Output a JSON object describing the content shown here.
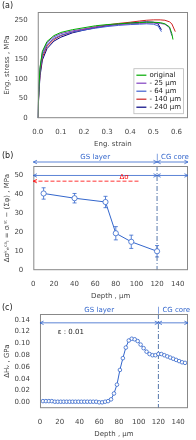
{
  "chart_data": [
    {
      "type": "line",
      "title": "(a)",
      "xlabel": "Eng. strain",
      "ylabel": "Eng. stress , MPa",
      "xlim": [
        0,
        0.65
      ],
      "ylim": [
        0,
        270
      ],
      "xticks": [
        {
          "value": 0.0,
          "label": "0.0"
        },
        0.1,
        0.2,
        0.3,
        0.4,
        0.5,
        0.6
      ],
      "yticks": [
        0,
        50,
        100,
        150,
        200,
        250
      ],
      "grid": false,
      "legend": "lower right",
      "series": [
        {
          "name": "original",
          "color": "#00aa00",
          "x": [
            0.0,
            0.005,
            0.01,
            0.02,
            0.04,
            0.07,
            0.1,
            0.15,
            0.2,
            0.25,
            0.3,
            0.35,
            0.4,
            0.44,
            0.47,
            0.5,
            0.53,
            0.55,
            0.57,
            0.58,
            0.585
          ],
          "values": [
            0,
            80,
            130,
            170,
            195,
            210,
            218,
            225,
            230,
            235,
            238,
            240,
            242,
            243,
            244,
            244,
            243,
            240,
            232,
            215,
            200
          ]
        },
        {
          "name": "- 25 μm",
          "color": "#8040c0",
          "x": [
            0.0,
            0.005,
            0.01,
            0.02,
            0.04,
            0.07,
            0.1,
            0.15,
            0.2,
            0.25,
            0.3,
            0.35,
            0.4,
            0.44,
            0.47,
            0.5,
            0.53,
            0.55,
            0.57,
            0.58
          ],
          "values": [
            0,
            78,
            128,
            167,
            192,
            207,
            215,
            222,
            227,
            232,
            236,
            238,
            240,
            241,
            242,
            242,
            241,
            239,
            230,
            210
          ]
        },
        {
          "name": "- 64 μm",
          "color": "#4060d0",
          "x": [
            0.0,
            0.005,
            0.01,
            0.02,
            0.04,
            0.07,
            0.1,
            0.15,
            0.2,
            0.25,
            0.3,
            0.35,
            0.4,
            0.44,
            0.47,
            0.5,
            0.52,
            0.535
          ],
          "values": [
            0,
            75,
            122,
            161,
            187,
            203,
            211,
            219,
            224,
            229,
            233,
            236,
            238,
            239,
            240,
            239,
            235,
            220
          ]
        },
        {
          "name": "- 140 μm",
          "color": "#cc2222",
          "x": [
            0.0,
            0.005,
            0.01,
            0.02,
            0.04,
            0.07,
            0.1,
            0.15,
            0.2,
            0.25,
            0.3,
            0.35,
            0.4,
            0.44,
            0.47,
            0.5,
            0.53,
            0.55,
            0.57,
            0.58,
            0.595
          ],
          "values": [
            0,
            70,
            115,
            155,
            183,
            200,
            210,
            219,
            226,
            232,
            237,
            241,
            244,
            247,
            249,
            250,
            250,
            249,
            245,
            240,
            220
          ]
        },
        {
          "name": "- 240 μm",
          "color": "#000080",
          "x": [
            0.0,
            0.005,
            0.01,
            0.02,
            0.04,
            0.07,
            0.1,
            0.15,
            0.2,
            0.25,
            0.3,
            0.35,
            0.4,
            0.44,
            0.47,
            0.5,
            0.52,
            0.535
          ],
          "values": [
            0,
            65,
            108,
            148,
            177,
            196,
            206,
            217,
            224,
            230,
            235,
            239,
            242,
            244,
            245,
            244,
            240,
            225
          ]
        }
      ]
    },
    {
      "type": "line",
      "title": "(b)",
      "xlabel": "Depth , μm",
      "ylabel": "Δσᵏₑᶜᵃₗ = σᵢⁿᵗ − (Σφ) , MPa",
      "xlim": [
        0,
        150
      ],
      "ylim": [
        0,
        55
      ],
      "xticks": [
        0,
        20,
        40,
        60,
        80,
        100,
        120,
        140
      ],
      "yticks": [
        0,
        10,
        20,
        30,
        40,
        50
      ],
      "grid": false,
      "series": [
        {
          "color": "#3366cc",
          "marker": "o",
          "line_style": "solid",
          "x": [
            10,
            40,
            70,
            80,
            95,
            120
          ],
          "values": [
            40.5,
            38.0,
            36.0,
            19.5,
            15.0,
            10.0
          ],
          "errors": [
            3.0,
            2.5,
            3.0,
            3.5,
            3.5,
            3.0
          ]
        }
      ],
      "vlines": [
        {
          "x": 120,
          "color": "#5577aa",
          "line_style": "dashdot"
        }
      ],
      "arrows": [
        {
          "x": [
            102,
            0
          ],
          "y": [
            47,
            47
          ],
          "color": "red",
          "line_style": "dashed",
          "marker": "->"
        },
        {
          "x": [
            120,
            150
          ],
          "y": [
            50,
            50
          ],
          "color": "#3366cc",
          "line_style": "solid",
          "marker": "<->"
        },
        {
          "x": [
            0,
            120
          ],
          "y": [
            50,
            50
          ],
          "color": "#3366cc",
          "line_style": "solid",
          "marker": "<->"
        },
        {
          "x": [
            120,
            150
          ],
          "y": [
            null,
            null
          ],
          "color": "#3366cc",
          "line_style": "solid",
          "marker": "<->"
        },
        {
          "x": [
            0,
            120
          ],
          "y": [
            null,
            null
          ],
          "color": "#3366cc",
          "line_style": "solid",
          "marker": "<->"
        }
      ],
      "annotations": [
        {
          "text": "Δσ",
          "x": 88,
          "y": 48,
          "color": "red"
        }
      ],
      "regions": [
        {
          "name": "GS layer",
          "from": 0,
          "to": 120,
          "color": "#3366cc"
        },
        {
          "name": "CG core",
          "from": 120,
          "to": 150,
          "color": "#3366cc"
        }
      ],
      "separator": "|"
    },
    {
      "type": "line",
      "title": "(c)",
      "xlabel": "Depth , μm",
      "ylabel": "ΔHᵥ , GPa",
      "xlim": [
        0,
        150
      ],
      "ylim": [
        -0.01,
        0.15
      ],
      "xticks": [
        0,
        20,
        40,
        60,
        80,
        100,
        120,
        140
      ],
      "yticks": [
        {
          "value": 0.0,
          "label": "0.00"
        },
        0.02,
        0.04,
        0.06,
        0.08,
        {
          "value": 0.1,
          "label": "0.10"
        },
        0.12,
        0.14
      ],
      "grid": false,
      "series": [
        {
          "color": "#3366cc",
          "marker": "o",
          "line_style": "solid",
          "x": [
            3,
            6,
            9,
            12,
            15,
            18,
            21,
            24,
            27,
            30,
            33,
            36,
            39,
            42,
            45,
            48,
            51,
            54,
            57,
            60,
            63,
            66,
            69,
            72,
            75,
            78,
            81,
            84,
            87,
            90,
            93,
            96,
            99,
            102,
            105,
            108,
            111,
            114,
            117,
            120,
            123,
            126,
            129,
            132,
            135,
            138,
            141,
            144,
            147
          ],
          "values": [
            0.002,
            0.002,
            0.002,
            0.002,
            0.001,
            0.001,
            0.001,
            0.001,
            0.001,
            0.001,
            0.001,
            0.001,
            0.001,
            0.001,
            0.001,
            0.001,
            0.001,
            0.001,
            0.001,
            0.0,
            0.0,
            0.001,
            0.002,
            0.005,
            0.015,
            0.03,
            0.055,
            0.075,
            0.093,
            0.105,
            0.108,
            0.107,
            0.104,
            0.098,
            0.092,
            0.086,
            0.082,
            0.08,
            0.08,
            0.082,
            0.082,
            0.08,
            0.078,
            0.076,
            0.074,
            0.072,
            0.07,
            0.068,
            0.067
          ]
        }
      ],
      "vlines": [
        {
          "x": 120,
          "color": "#5577aa",
          "line_style": "dashdot"
        }
      ],
      "arrows": [
        {
          "x": [
            120,
            0
          ],
          "y": [
            0.135,
            0.135
          ],
          "color": "#3366cc",
          "line_style": "solid",
          "marker": "<->"
        },
        {
          "x": [
            150,
            120
          ],
          "y": [
            0.135,
            0.135
          ],
          "color": "#3366cc",
          "line_style": "solid",
          "marker": "<->"
        }
      ],
      "annotations": [
        {
          "text": "ε : 0.01"
        }
      ],
      "regions": [
        {
          "name": "GS layer",
          "from": 0,
          "to": 120,
          "color": "#3366cc"
        },
        {
          "name": "CG core",
          "from": 120,
          "to": 150,
          "color": "#3366cc"
        }
      ],
      "separator": "|"
    }
  ]
}
